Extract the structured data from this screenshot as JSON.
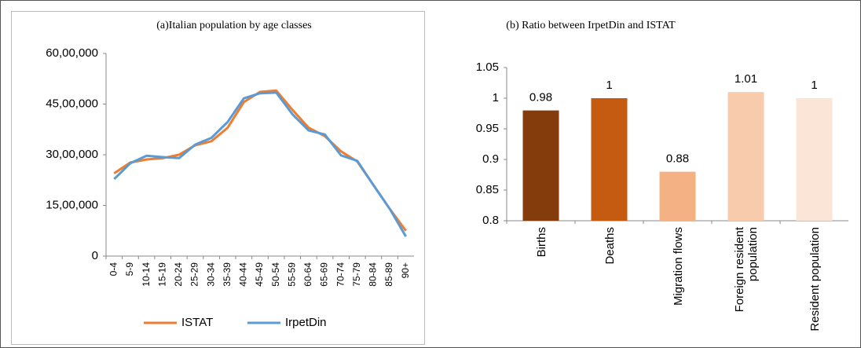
{
  "chart_data": [
    {
      "type": "line",
      "title": "(a)Italian population by age classes",
      "categories": [
        "0-4",
        "5-9",
        "10-14",
        "15-19",
        "20-24",
        "25-29",
        "30-34",
        "35-39",
        "40-44",
        "45-49",
        "50-54",
        "55-59",
        "60-64",
        "65-69",
        "70-74",
        "75-79",
        "80-84",
        "85-89",
        "90+"
      ],
      "series": [
        {
          "name": "ISTAT",
          "color": "#ed7d31",
          "values": [
            2450000,
            2770000,
            2860000,
            2900000,
            3000000,
            3280000,
            3400000,
            3800000,
            4560000,
            4860000,
            4900000,
            4330000,
            3800000,
            3550000,
            3100000,
            2800000,
            2100000,
            1400000,
            750000
          ]
        },
        {
          "name": "IrpetDin",
          "color": "#5b9bd5",
          "values": [
            2280000,
            2750000,
            2970000,
            2930000,
            2900000,
            3300000,
            3500000,
            3970000,
            4670000,
            4820000,
            4840000,
            4200000,
            3720000,
            3600000,
            2980000,
            2820000,
            2100000,
            1400000,
            580000
          ]
        }
      ],
      "ylim": [
        0,
        6000000
      ],
      "yticks": [
        0,
        {
          "value": 1500000,
          "label": "15,00,000"
        },
        {
          "value": 3000000,
          "label": "30,00,000"
        },
        {
          "value": 4500000,
          "label": "45,00,000"
        },
        {
          "value": 6000000,
          "label": "60,00,000"
        }
      ],
      "grid": false,
      "legend": "bottom"
    },
    {
      "type": "bar",
      "title": "(b) Ratio between IrpetDin and ISTAT",
      "categories": [
        "Births",
        "Deaths",
        "Migration flows",
        "Foreign resident population",
        "Resident population"
      ],
      "values": [
        0.98,
        1,
        0.88,
        1.01,
        1
      ],
      "colors": [
        "#843c0c",
        "#c55a11",
        "#f4b183",
        "#f8cbad",
        "#fbe5d6"
      ],
      "ylim": [
        0.8,
        1.05
      ],
      "yticks": [
        0.8,
        0.85,
        0.9,
        0.95,
        1,
        1.05
      ],
      "grid": false
    }
  ]
}
